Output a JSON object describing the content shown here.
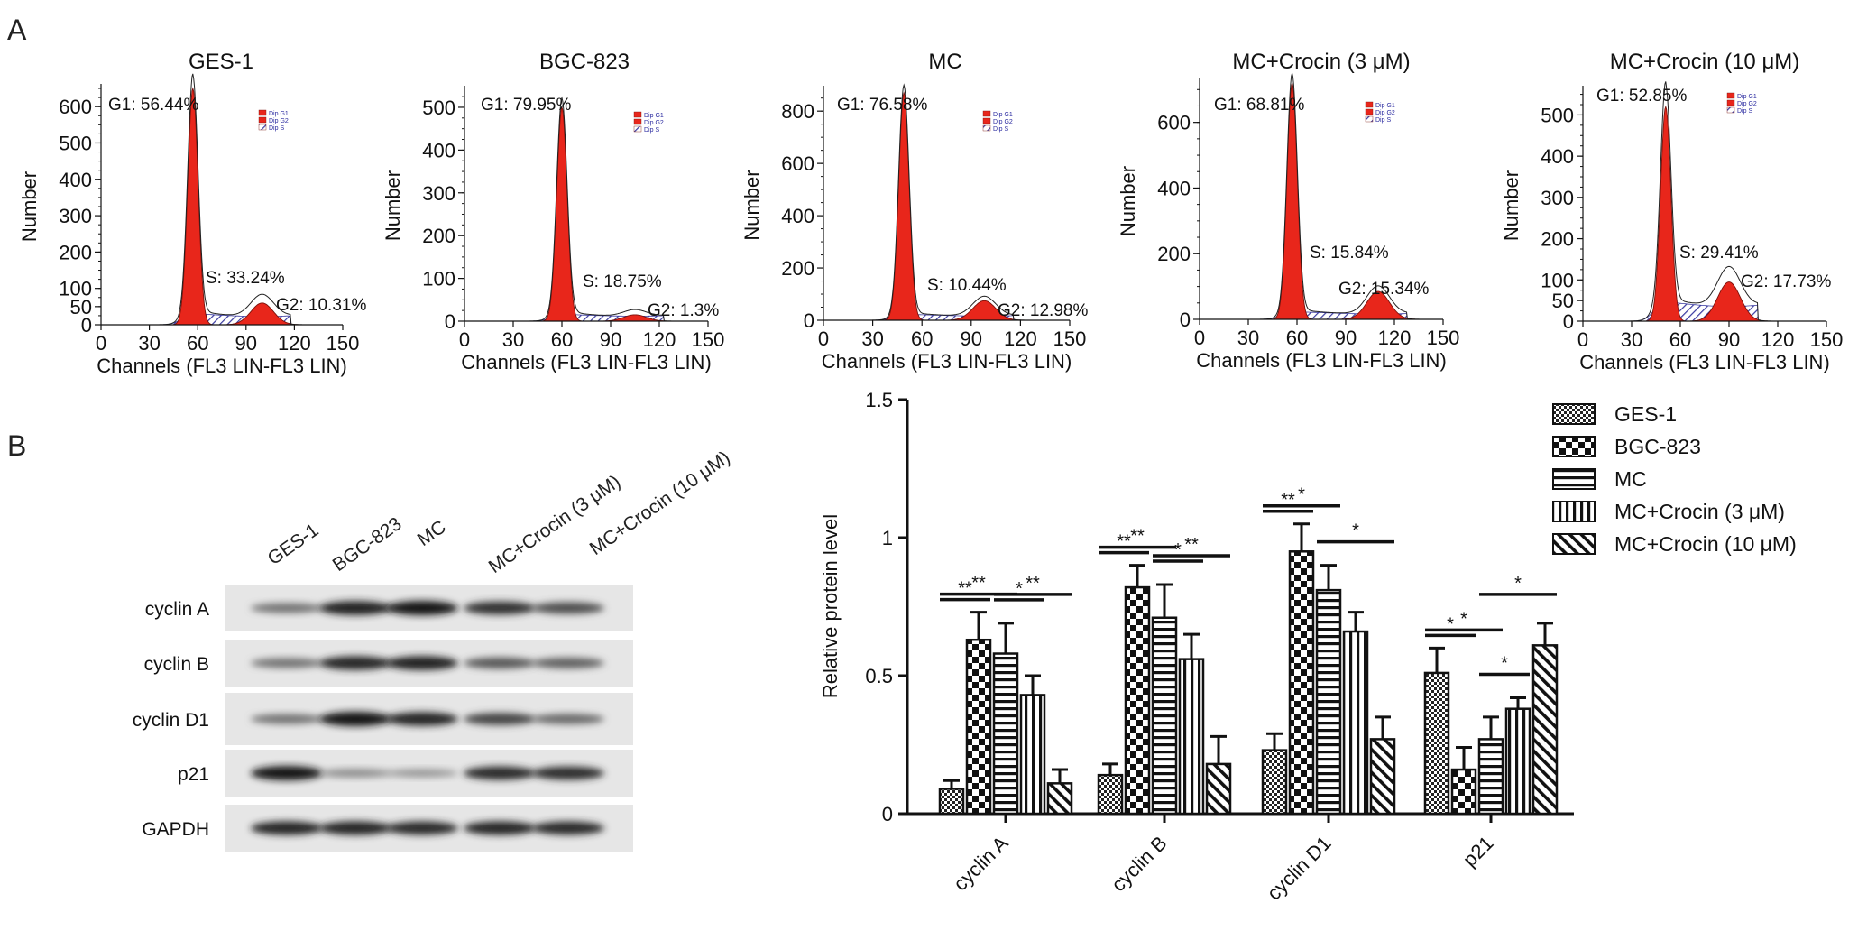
{
  "panel_labels": {
    "a": "A",
    "b": "B"
  },
  "flow": {
    "axis": {
      "xlabel": "Channels (FL3 LIN-FL3 LIN)",
      "ylabel": "Number",
      "xticks": [
        0,
        30,
        60,
        90,
        120,
        150
      ]
    },
    "legend": [
      "Dip G1",
      "Dip G2",
      "Dip S"
    ]
  },
  "blot": {
    "lanes": [
      "GES-1",
      "BGC-823",
      "MC",
      "MC+Crocin (3 μM)",
      "MC+Crocin (10 μM)"
    ],
    "rows": [
      {
        "label": "cyclin A",
        "intensity": [
          0.5,
          0.95,
          1.0,
          0.85,
          0.7
        ]
      },
      {
        "label": "cyclin B",
        "intensity": [
          0.5,
          0.92,
          0.95,
          0.65,
          0.6
        ]
      },
      {
        "label": "cyclin D1",
        "intensity": [
          0.5,
          1.0,
          0.92,
          0.75,
          0.55
        ]
      },
      {
        "label": "p21",
        "intensity": [
          1.0,
          0.35,
          0.3,
          0.9,
          0.88
        ]
      },
      {
        "label": "GAPDH",
        "intensity": [
          0.92,
          0.92,
          0.9,
          0.92,
          0.9
        ]
      }
    ]
  },
  "chart_data": [
    {
      "type": "area",
      "title": "GES-1",
      "xlabel": "Channels (FL3 LIN-FL3 LIN)",
      "ylabel": "Number",
      "xlim": [
        0,
        150
      ],
      "ylim": [
        0,
        650
      ],
      "yticks": [
        0,
        50,
        100,
        200,
        300,
        400,
        500,
        600
      ],
      "peaks": {
        "g1_center": 57,
        "g1_height": 650,
        "g2_center": 100,
        "g2_height": 60,
        "s_level": 35
      },
      "annotations": {
        "g1": "G1: 56.44%",
        "s": "S: 33.24%",
        "g2": "G2: 10.31%"
      }
    },
    {
      "type": "area",
      "title": "BGC-823",
      "xlabel": "Channels (FL3 LIN-FL3 LIN)",
      "ylabel": "Number",
      "xlim": [
        0,
        150
      ],
      "ylim": [
        0,
        540
      ],
      "yticks": [
        0,
        100,
        200,
        300,
        400,
        500
      ],
      "peaks": {
        "g1_center": 60,
        "g1_height": 500,
        "g2_center": 105,
        "g2_height": 15,
        "s_level": 18
      },
      "annotations": {
        "g1": "G1: 79.95%",
        "s": "S: 18.75%",
        "g2": "G2: 1.3%"
      }
    },
    {
      "type": "area",
      "title": "MC",
      "xlabel": "Channels (FL3 LIN-FL3 LIN)",
      "ylabel": "Number",
      "xlim": [
        0,
        150
      ],
      "ylim": [
        0,
        880
      ],
      "yticks": [
        0,
        200,
        400,
        600,
        800
      ],
      "peaks": {
        "g1_center": 49,
        "g1_height": 870,
        "g2_center": 98,
        "g2_height": 75,
        "s_level": 25
      },
      "annotations": {
        "g1": "G1: 76.58%",
        "s": "S: 10.44%",
        "g2": "G2: 12.98%"
      }
    },
    {
      "type": "area",
      "title": "MC+Crocin (3 μM)",
      "xlabel": "Channels (FL3 LIN-FL3 LIN)",
      "ylabel": "Number",
      "xlim": [
        0,
        150
      ],
      "ylim": [
        0,
        720
      ],
      "yticks": [
        0,
        200,
        400,
        600
      ],
      "peaks": {
        "g1_center": 57,
        "g1_height": 720,
        "g2_center": 110,
        "g2_height": 85,
        "s_level": 25
      },
      "annotations": {
        "g1": "G1: 68.81%",
        "s": "S: 15.84%",
        "g2": "G2: 15.34%"
      }
    },
    {
      "type": "area",
      "title": "MC+Crocin (10 μM)",
      "xlabel": "Channels (FL3 LIN-FL3 LIN)",
      "ylabel": "Number",
      "xlim": [
        0,
        150
      ],
      "ylim": [
        0,
        560
      ],
      "yticks": [
        0,
        50,
        100,
        200,
        300,
        400,
        500
      ],
      "peaks": {
        "g1_center": 51,
        "g1_height": 520,
        "g2_center": 90,
        "g2_height": 95,
        "s_level": 55
      },
      "annotations": {
        "g1": "G1: 52.85%",
        "s": "S: 29.41%",
        "g2": "G2: 17.73%"
      }
    },
    {
      "type": "bar",
      "title": "",
      "xlabel": "",
      "ylabel": "Relative protein level",
      "ylim": [
        0,
        1.5
      ],
      "yticks": [
        0.0,
        0.5,
        1.0,
        1.5
      ],
      "categories": [
        "cyclin A",
        "cyclin B",
        "cyclin D1",
        "p21"
      ],
      "series": [
        {
          "name": "GES-1",
          "pattern": "checker",
          "values": [
            0.09,
            0.14,
            0.23,
            0.51
          ],
          "errors": [
            0.03,
            0.04,
            0.06,
            0.09
          ]
        },
        {
          "name": "BGC-823",
          "pattern": "bigcheck",
          "values": [
            0.63,
            0.82,
            0.95,
            0.16
          ],
          "errors": [
            0.1,
            0.08,
            0.1,
            0.08
          ]
        },
        {
          "name": "MC",
          "pattern": "hlines",
          "values": [
            0.58,
            0.71,
            0.81,
            0.27
          ],
          "errors": [
            0.11,
            0.12,
            0.09,
            0.08
          ]
        },
        {
          "name": "MC+Crocin (3 μM)",
          "pattern": "vlines",
          "values": [
            0.43,
            0.56,
            0.66,
            0.38
          ],
          "errors": [
            0.07,
            0.09,
            0.07,
            0.04
          ]
        },
        {
          "name": "MC+Crocin (10 μM)",
          "pattern": "diag",
          "values": [
            0.11,
            0.18,
            0.27,
            0.61
          ],
          "errors": [
            0.05,
            0.1,
            0.08,
            0.08
          ]
        }
      ],
      "significance": [
        {
          "cat": 0,
          "from": 0,
          "to": 1,
          "label": "**"
        },
        {
          "cat": 0,
          "from": 0,
          "to": 2,
          "label": "**"
        },
        {
          "cat": 0,
          "from": 2,
          "to": 3,
          "label": "*"
        },
        {
          "cat": 0,
          "from": 2,
          "to": 4,
          "label": "**"
        },
        {
          "cat": 1,
          "from": 0,
          "to": 1,
          "label": "**"
        },
        {
          "cat": 1,
          "from": 0,
          "to": 2,
          "label": "**"
        },
        {
          "cat": 1,
          "from": 2,
          "to": 3,
          "label": "*"
        },
        {
          "cat": 1,
          "from": 2,
          "to": 4,
          "label": "**"
        },
        {
          "cat": 2,
          "from": 0,
          "to": 1,
          "label": "**"
        },
        {
          "cat": 2,
          "from": 0,
          "to": 2,
          "label": "*"
        },
        {
          "cat": 2,
          "from": 2,
          "to": 4,
          "label": "*"
        },
        {
          "cat": 3,
          "from": 0,
          "to": 1,
          "label": "*"
        },
        {
          "cat": 3,
          "from": 0,
          "to": 2,
          "label": "*"
        },
        {
          "cat": 3,
          "from": 2,
          "to": 3,
          "label": "*"
        },
        {
          "cat": 3,
          "from": 2,
          "to": 4,
          "label": "*"
        }
      ]
    }
  ]
}
